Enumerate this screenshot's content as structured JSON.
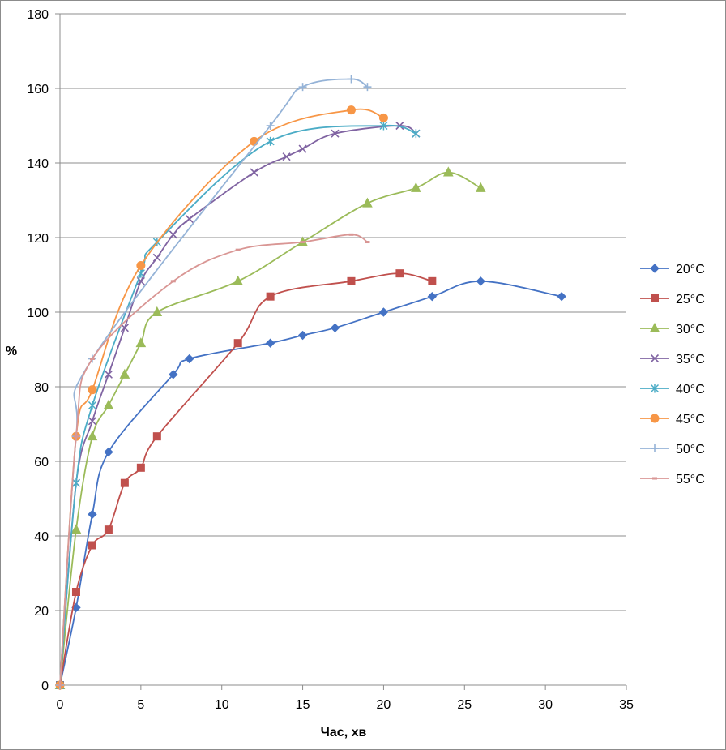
{
  "chart_data": {
    "type": "scatter",
    "xlabel": "Час, хв",
    "ylabel": "%",
    "xlim": [
      0,
      35
    ],
    "ylim": [
      0,
      180
    ],
    "xticks": [
      0,
      5,
      10,
      15,
      20,
      25,
      30,
      35
    ],
    "yticks": [
      0,
      20,
      40,
      60,
      80,
      100,
      120,
      140,
      160,
      180
    ],
    "grid": "horizontal",
    "legend_position": "right",
    "smooth_lines": true,
    "series": [
      {
        "name": "20°C",
        "color": "#4472C4",
        "marker": "diamond",
        "x": [
          0,
          1,
          2,
          3,
          7,
          8,
          13,
          15,
          17,
          20,
          23,
          26,
          31
        ],
        "y": [
          0,
          20.8,
          45.8,
          62.5,
          83.3,
          87.5,
          91.7,
          93.8,
          95.8,
          100,
          104.2,
          108.3,
          104.2
        ]
      },
      {
        "name": "25°C",
        "color": "#C0504D",
        "marker": "square",
        "x": [
          0,
          1,
          2,
          3,
          4,
          5,
          6,
          11,
          13,
          18,
          21,
          23
        ],
        "y": [
          0,
          25,
          37.5,
          41.7,
          54.2,
          58.3,
          66.7,
          91.7,
          104.2,
          108.3,
          110.4,
          108.3
        ]
      },
      {
        "name": "30°C",
        "color": "#9BBB59",
        "marker": "triangle",
        "x": [
          0,
          1,
          2,
          3,
          4,
          5,
          6,
          11,
          15,
          19,
          22,
          24,
          26
        ],
        "y": [
          0,
          41.7,
          66.7,
          75,
          83.3,
          91.7,
          100,
          108.3,
          118.8,
          129.2,
          133.3,
          137.5,
          133.3
        ]
      },
      {
        "name": "35°C",
        "color": "#8064A2",
        "marker": "x",
        "x": [
          0,
          1,
          2,
          3,
          4,
          5,
          6,
          7,
          8,
          12,
          14,
          15,
          17,
          21,
          22
        ],
        "y": [
          0,
          54.2,
          70.8,
          83.3,
          95.8,
          108.3,
          114.6,
          120.8,
          125,
          137.5,
          141.7,
          143.8,
          147.9,
          150,
          147.9
        ]
      },
      {
        "name": "40°C",
        "color": "#4BACC6",
        "marker": "star",
        "x": [
          0,
          1,
          2,
          5,
          6,
          13,
          20,
          22
        ],
        "y": [
          0,
          54.2,
          75,
          110.4,
          118.8,
          145.8,
          150,
          147.9
        ]
      },
      {
        "name": "45°C",
        "color": "#F79646",
        "marker": "circle",
        "x": [
          0,
          1,
          2,
          5,
          12,
          18,
          20
        ],
        "y": [
          0,
          66.7,
          79.2,
          112.5,
          145.8,
          154.2,
          152.1
        ]
      },
      {
        "name": "50°C",
        "color": "#95B3D7",
        "marker": "plus",
        "x": [
          0,
          1,
          2,
          13,
          15,
          18,
          19
        ],
        "y": [
          0,
          66.7,
          87.5,
          150,
          160.4,
          162.5,
          160.4
        ]
      },
      {
        "name": "55°C",
        "color": "#D99694",
        "marker": "dash",
        "x": [
          0,
          1,
          2,
          7,
          11,
          15,
          18,
          19
        ],
        "y": [
          0,
          66.7,
          87.5,
          108.3,
          116.7,
          118.8,
          120.8,
          118.8
        ]
      }
    ]
  }
}
